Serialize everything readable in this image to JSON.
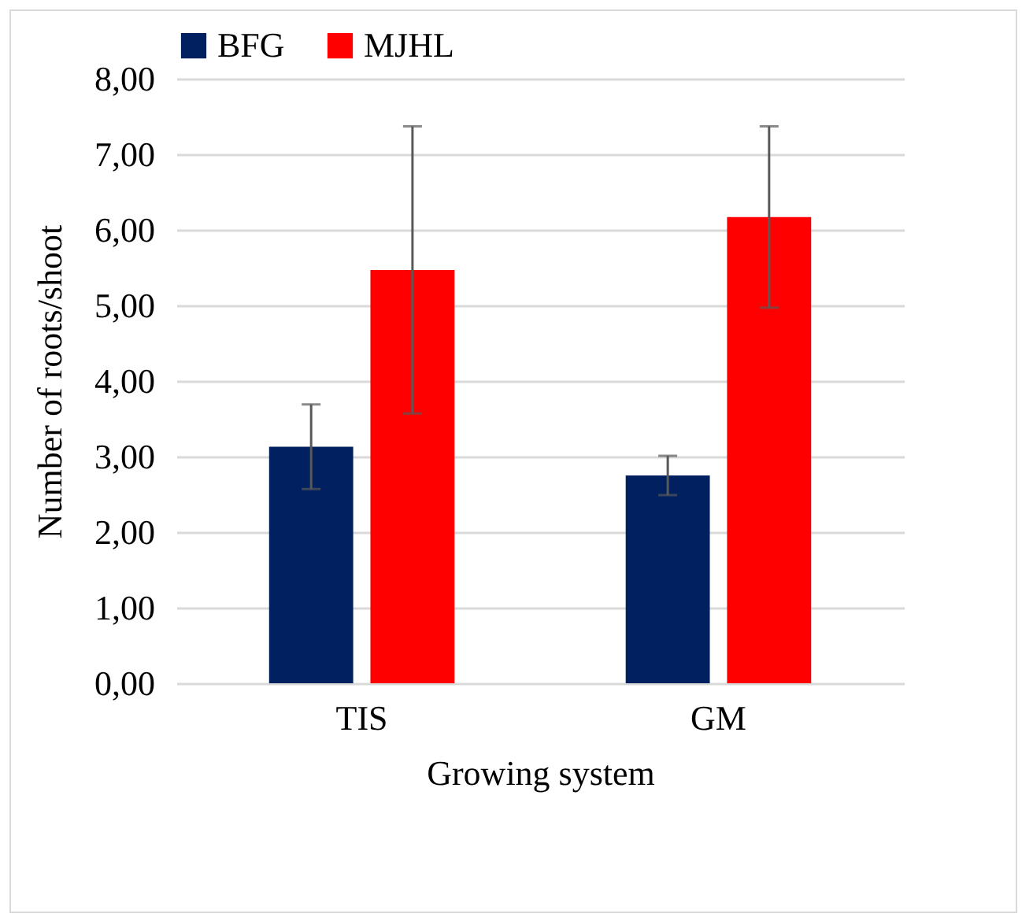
{
  "chart_data": {
    "type": "bar",
    "xlabel": "Growing system",
    "ylabel": "Number of roots/shoot",
    "categories": [
      "TIS",
      "GM"
    ],
    "series": [
      {
        "name": "BFG",
        "color": "#002060",
        "values": [
          3.13,
          2.75
        ],
        "errors": [
          0.56,
          0.26
        ]
      },
      {
        "name": "MJHL",
        "color": "#ff0000",
        "values": [
          5.47,
          6.17
        ],
        "errors": [
          1.9,
          1.2
        ]
      }
    ],
    "ylim": [
      0,
      8
    ],
    "yticks": [
      {
        "value": 0,
        "label": "0,00"
      },
      {
        "value": 1,
        "label": "1,00"
      },
      {
        "value": 2,
        "label": "2,00"
      },
      {
        "value": 3,
        "label": "3,00"
      },
      {
        "value": 4,
        "label": "4,00"
      },
      {
        "value": 5,
        "label": "5,00"
      },
      {
        "value": 6,
        "label": "6,00"
      },
      {
        "value": 7,
        "label": "7,00"
      },
      {
        "value": 8,
        "label": "8,00"
      }
    ],
    "grid": "y",
    "legend": "top"
  }
}
